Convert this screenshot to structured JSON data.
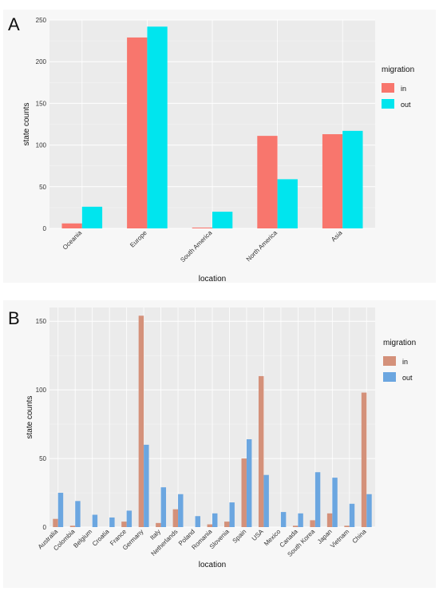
{
  "chart_data": [
    {
      "panel": "A",
      "type": "bar",
      "xlabel": "location",
      "ylabel": "state counts",
      "ylim": [
        0,
        250
      ],
      "yticks": [
        0,
        50,
        100,
        150,
        200,
        250
      ],
      "grid": true,
      "legend": {
        "title": "migration",
        "position": "right"
      },
      "categories": [
        "Oceania",
        "Europe",
        "South America",
        "North America",
        "Asia"
      ],
      "series": [
        {
          "name": "in",
          "color": "#f8766d",
          "values": [
            6,
            229,
            1,
            111,
            113
          ]
        },
        {
          "name": "out",
          "color": "#00e5ee",
          "values": [
            26,
            242,
            20,
            59,
            117
          ]
        }
      ]
    },
    {
      "panel": "B",
      "type": "bar",
      "xlabel": "location",
      "ylabel": "state counts",
      "ylim": [
        0,
        160
      ],
      "yticks": [
        0,
        50,
        100,
        150
      ],
      "grid": true,
      "legend": {
        "title": "migration",
        "position": "right"
      },
      "categories": [
        "Australia",
        "Colombia",
        "Belgium",
        "Croatia",
        "France",
        "Germany",
        "Italy",
        "Netherlands",
        "Poland",
        "Romania",
        "Slovenia",
        "Spain",
        "USA",
        "Mexico",
        "Canada",
        "South Korea",
        "Japan",
        "Vietnam",
        "China"
      ],
      "series": [
        {
          "name": "in",
          "color": "#d4917a",
          "values": [
            6,
            1,
            0,
            0,
            4,
            154,
            3,
            13,
            0,
            2,
            4,
            50,
            110,
            0,
            1,
            5,
            10,
            1,
            98
          ]
        },
        {
          "name": "out",
          "color": "#6ba6e0",
          "values": [
            25,
            19,
            9,
            7,
            12,
            60,
            29,
            24,
            8,
            10,
            18,
            64,
            38,
            11,
            10,
            40,
            36,
            17,
            24
          ]
        }
      ]
    }
  ]
}
